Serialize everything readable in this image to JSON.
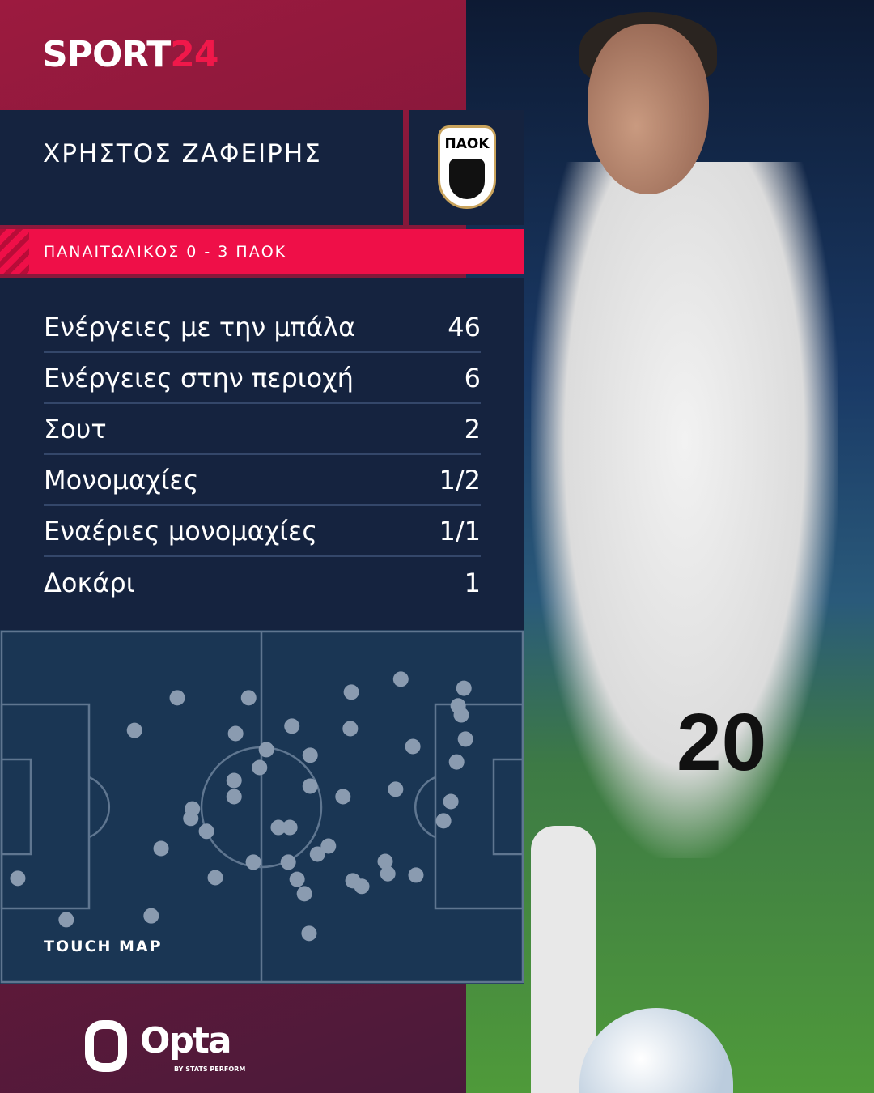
{
  "brand": {
    "logo_main": "SPORT",
    "logo_accent": "24"
  },
  "player": {
    "name": "ΧΡΗΣΤΟΣ ΖΑΦΕΙΡΗΣ",
    "shirt_number": "20"
  },
  "club": {
    "crest_text": "ΠΑΟΚ"
  },
  "match": {
    "result": "ΠΑΝΑΙΤΩΛΙΚΟΣ 0 - 3 ΠΑΟΚ"
  },
  "stats": [
    {
      "label": "Ενέργειες με την μπάλα",
      "value": "46"
    },
    {
      "label": "Ενέργειες στην περιοχή",
      "value": "6"
    },
    {
      "label": "Σουτ",
      "value": "2"
    },
    {
      "label": "Μονομαχίες",
      "value": "1/2"
    },
    {
      "label": "Εναέριες μονομαχίες",
      "value": "1/1"
    },
    {
      "label": "Δοκάρι",
      "value": "1"
    }
  ],
  "touch_map": {
    "label": "TOUCH MAP",
    "touches_pct_xy": [
      [
        33.7,
        18.9
      ],
      [
        47.4,
        18.9
      ],
      [
        25.5,
        28.2
      ],
      [
        44.9,
        29.1
      ],
      [
        55.7,
        27.0
      ],
      [
        50.8,
        33.7
      ],
      [
        49.5,
        38.8
      ],
      [
        59.2,
        35.3
      ],
      [
        44.6,
        42.5
      ],
      [
        44.6,
        47.1
      ],
      [
        36.6,
        50.6
      ],
      [
        36.3,
        53.3
      ],
      [
        39.3,
        57.0
      ],
      [
        30.6,
        61.9
      ],
      [
        53.1,
        55.9
      ],
      [
        55.3,
        55.9
      ],
      [
        48.3,
        65.8
      ],
      [
        55.0,
        65.8
      ],
      [
        60.6,
        63.5
      ],
      [
        62.7,
        61.2
      ],
      [
        56.7,
        70.7
      ],
      [
        58.1,
        74.8
      ],
      [
        41.0,
        70.2
      ],
      [
        3.1,
        70.4
      ],
      [
        12.4,
        82.2
      ],
      [
        28.7,
        81.1
      ],
      [
        59.0,
        86.1
      ],
      [
        67.1,
        17.3
      ],
      [
        76.6,
        13.6
      ],
      [
        66.9,
        27.7
      ],
      [
        59.2,
        44.1
      ],
      [
        65.5,
        47.1
      ],
      [
        75.6,
        45.0
      ],
      [
        78.9,
        32.8
      ],
      [
        88.7,
        16.2
      ],
      [
        87.6,
        21.2
      ],
      [
        88.2,
        23.8
      ],
      [
        89.0,
        30.7
      ],
      [
        87.3,
        37.2
      ],
      [
        86.2,
        48.5
      ],
      [
        84.8,
        54.0
      ],
      [
        73.6,
        65.6
      ],
      [
        74.1,
        69.1
      ],
      [
        79.5,
        69.5
      ],
      [
        67.4,
        71.1
      ],
      [
        69.1,
        72.7
      ]
    ],
    "colors": {
      "pitch": "#1a3654",
      "lines": "#5f7690",
      "dot": "#8a9bb0"
    }
  },
  "footer": {
    "provider": "Opta",
    "provider_sub": "BY STATS PERFORM"
  }
}
